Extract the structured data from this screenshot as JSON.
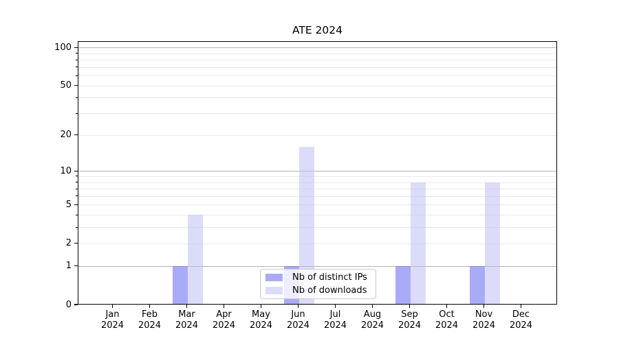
{
  "chart_data": {
    "type": "bar",
    "title": "ATE 2024",
    "categories": [
      "Jan",
      "Feb",
      "Mar",
      "Apr",
      "May",
      "Jun",
      "Jul",
      "Aug",
      "Sep",
      "Oct",
      "Nov",
      "Dec"
    ],
    "year_label": "2024",
    "series": [
      {
        "name": "Nb of distinct IPs",
        "values": [
          0,
          0,
          1,
          0,
          0,
          1,
          0,
          0,
          1,
          0,
          1,
          0
        ],
        "color": "#aaabf7",
        "fill_rgba": "rgba(85,87,240,0.5)"
      },
      {
        "name": "Nb of downloads",
        "values": [
          0,
          0,
          4,
          0,
          0,
          16,
          0,
          0,
          8,
          0,
          8,
          0
        ],
        "color": "#dcdcfa",
        "fill_rgba": "rgba(185,186,246,0.5)"
      }
    ],
    "xlabel": "",
    "ylabel": "",
    "yscale": "log1p",
    "ylim": [
      0,
      112
    ],
    "yticks": [
      0,
      1,
      2,
      5,
      10,
      20,
      50,
      100
    ],
    "major_gridlines": [
      1,
      10,
      100
    ],
    "minor_gridlines": [
      2,
      3,
      4,
      5,
      6,
      7,
      8,
      9,
      20,
      30,
      40,
      50,
      60,
      70,
      80,
      90
    ],
    "grid": "on",
    "legend_position": "lower center",
    "colors": {
      "grid_major": "#b2b2b2",
      "grid_minor": "#e9e9e9",
      "axis": "#000000",
      "background": "#ffffff"
    }
  }
}
